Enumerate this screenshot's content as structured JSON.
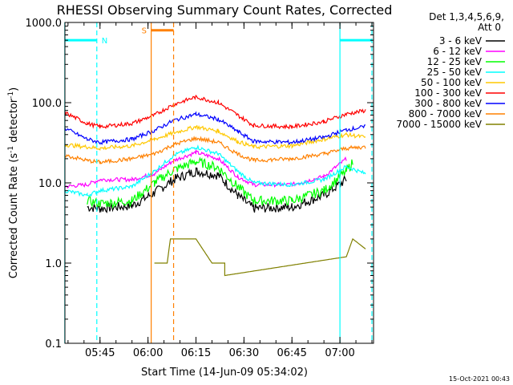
{
  "chart_data": {
    "type": "line",
    "title": "RHESSI Observing Summary Count Rates, Corrected",
    "xlabel": "Start Time (14-Jun-09 05:34:02)",
    "ylabel": "Corrected Count Rate (s",
    "ylabel_sup1": "-1",
    "ylabel_mid": " detector",
    "ylabel_sup2": "-1",
    "ylabel_end": ")",
    "yscale": "log",
    "ylim": [
      0.1,
      1000
    ],
    "xlim_minutes": [
      5.6,
      20.6
    ],
    "xlim_note_hidden": "",
    "y_ticks": [
      {
        "value": 1000,
        "label": "1000.0"
      },
      {
        "value": 100,
        "label": "100.0"
      },
      {
        "value": 10,
        "label": "10.0"
      },
      {
        "value": 1,
        "label": "1.0"
      },
      {
        "value": 0.1,
        "label": "0.1"
      }
    ],
    "x_ticks": [
      {
        "time": "05:45",
        "label": "05:45"
      },
      {
        "time": "06:00",
        "label": "06:00"
      },
      {
        "time": "06:15",
        "label": "06:15"
      },
      {
        "time": "06:30",
        "label": "06:30"
      },
      {
        "time": "06:45",
        "label": "06:45"
      },
      {
        "time": "07:00",
        "label": "07:00"
      }
    ],
    "legend": {
      "header1": "Det 1,3,4,5,6,9,",
      "header2": "Att 0",
      "placement": "right"
    },
    "series": [
      {
        "name": "3 - 6 keV",
        "color": "#000000",
        "points": [
          [
            "05:41",
            5
          ],
          [
            "05:45",
            4.8
          ],
          [
            "05:55",
            5.2
          ],
          [
            "06:02",
            7.5
          ],
          [
            "06:08",
            11
          ],
          [
            "06:15",
            14
          ],
          [
            "06:22",
            12.5
          ],
          [
            "06:28",
            7
          ],
          [
            "06:33",
            4.8
          ],
          [
            "06:45",
            5
          ],
          [
            "06:55",
            7
          ],
          [
            "07:02",
            11
          ]
        ]
      },
      {
        "name": "6 - 12 keV",
        "color": "#ff00ff",
        "points": [
          [
            "05:34",
            9
          ],
          [
            "05:41",
            9.5
          ],
          [
            "05:45",
            11
          ],
          [
            "05:55",
            11
          ],
          [
            "06:02",
            13
          ],
          [
            "06:08",
            19
          ],
          [
            "06:15",
            24
          ],
          [
            "06:22",
            20
          ],
          [
            "06:28",
            12
          ],
          [
            "06:33",
            9.5
          ],
          [
            "06:45",
            9.5
          ],
          [
            "06:55",
            12
          ],
          [
            "07:02",
            20
          ]
        ]
      },
      {
        "name": "12 - 25 keV",
        "color": "#00ff00",
        "points": [
          [
            "05:41",
            6
          ],
          [
            "05:45",
            5.5
          ],
          [
            "05:55",
            6
          ],
          [
            "06:02",
            10
          ],
          [
            "06:08",
            14.5
          ],
          [
            "06:15",
            18.5
          ],
          [
            "06:22",
            15.5
          ],
          [
            "06:28",
            9
          ],
          [
            "06:33",
            6
          ],
          [
            "06:45",
            6
          ],
          [
            "06:55",
            8
          ],
          [
            "07:02",
            14
          ],
          [
            "07:04",
            18
          ]
        ]
      },
      {
        "name": "25 - 50 keV",
        "color": "#00ffff",
        "points": [
          [
            "05:34",
            8
          ],
          [
            "05:41",
            7
          ],
          [
            "05:45",
            8
          ],
          [
            "05:55",
            9
          ],
          [
            "06:02",
            14
          ],
          [
            "06:08",
            22
          ],
          [
            "06:15",
            28
          ],
          [
            "06:22",
            23
          ],
          [
            "06:28",
            14
          ],
          [
            "06:33",
            10
          ],
          [
            "06:45",
            9.5
          ],
          [
            "06:55",
            11
          ],
          [
            "07:02",
            16
          ],
          [
            "07:08",
            13
          ]
        ]
      },
      {
        "name": "50 - 100 keV",
        "color": "#ffc800",
        "points": [
          [
            "05:34",
            30
          ],
          [
            "05:41",
            28
          ],
          [
            "05:45",
            27
          ],
          [
            "05:55",
            29
          ],
          [
            "06:02",
            35
          ],
          [
            "06:08",
            42
          ],
          [
            "06:15",
            50
          ],
          [
            "06:22",
            44
          ],
          [
            "06:28",
            33
          ],
          [
            "06:33",
            28
          ],
          [
            "06:45",
            29
          ],
          [
            "06:55",
            35
          ],
          [
            "07:02",
            40
          ],
          [
            "07:08",
            37
          ]
        ]
      },
      {
        "name": "100 - 300 keV",
        "color": "#ff0000",
        "points": [
          [
            "05:34",
            75
          ],
          [
            "05:41",
            55
          ],
          [
            "05:45",
            50
          ],
          [
            "05:55",
            55
          ],
          [
            "06:02",
            70
          ],
          [
            "06:08",
            95
          ],
          [
            "06:15",
            118
          ],
          [
            "06:22",
            100
          ],
          [
            "06:28",
            70
          ],
          [
            "06:33",
            52
          ],
          [
            "06:45",
            50
          ],
          [
            "06:55",
            58
          ],
          [
            "07:02",
            72
          ],
          [
            "07:08",
            80
          ]
        ]
      },
      {
        "name": "300 - 800 keV",
        "color": "#0000ff",
        "points": [
          [
            "05:34",
            48
          ],
          [
            "05:41",
            35
          ],
          [
            "05:45",
            32
          ],
          [
            "05:55",
            35
          ],
          [
            "06:02",
            45
          ],
          [
            "06:08",
            60
          ],
          [
            "06:15",
            72
          ],
          [
            "06:22",
            62
          ],
          [
            "06:28",
            44
          ],
          [
            "06:33",
            33
          ],
          [
            "06:45",
            32
          ],
          [
            "06:55",
            37
          ],
          [
            "07:02",
            46
          ],
          [
            "07:08",
            50
          ]
        ]
      },
      {
        "name": "800 - 7000 keV",
        "color": "#ff8000",
        "points": [
          [
            "05:34",
            22
          ],
          [
            "05:41",
            19
          ],
          [
            "05:45",
            18
          ],
          [
            "05:55",
            20
          ],
          [
            "06:02",
            23
          ],
          [
            "06:08",
            30
          ],
          [
            "06:15",
            36
          ],
          [
            "06:22",
            32
          ],
          [
            "06:28",
            23
          ],
          [
            "06:33",
            19
          ],
          [
            "06:45",
            20
          ],
          [
            "06:55",
            23
          ],
          [
            "07:02",
            27
          ],
          [
            "07:08",
            28
          ]
        ]
      },
      {
        "name": "7000 - 15000 keV",
        "color": "#808000",
        "points": [
          [
            "06:02",
            1
          ],
          [
            "06:06",
            1
          ],
          [
            "06:07",
            2
          ],
          [
            "06:15",
            2
          ],
          [
            "06:20",
            1
          ],
          [
            "06:24",
            1
          ],
          [
            "06:24",
            0.7
          ],
          [
            "07:02",
            1.2
          ],
          [
            "07:04",
            2
          ],
          [
            "07:08",
            1.5
          ]
        ]
      }
    ],
    "annotations": {
      "night": [
        {
          "label": "N",
          "color": "#00ffff",
          "start": "05:34",
          "end": "05:44",
          "y": 600
        },
        {
          "label": "",
          "color": "#00ffff",
          "start": "07:00",
          "end": "07:10",
          "y": 600
        }
      ],
      "saa": {
        "label": "S",
        "color": "#ff8000",
        "start": "06:01",
        "end": "06:08",
        "y": 800
      },
      "vlines": [
        {
          "time": "05:34",
          "color": "#00ffff",
          "style": "solid"
        },
        {
          "time": "05:44",
          "color": "#00ffff",
          "style": "dashed"
        },
        {
          "time": "06:01",
          "color": "#ff8000",
          "style": "solid"
        },
        {
          "time": "06:08",
          "color": "#ff8000",
          "style": "dashed"
        },
        {
          "time": "07:00",
          "color": "#00ffff",
          "style": "solid"
        },
        {
          "time": "07:10",
          "color": "#00ffff",
          "style": "dashed"
        }
      ]
    },
    "footer": "15-Oct-2021 00:43"
  }
}
